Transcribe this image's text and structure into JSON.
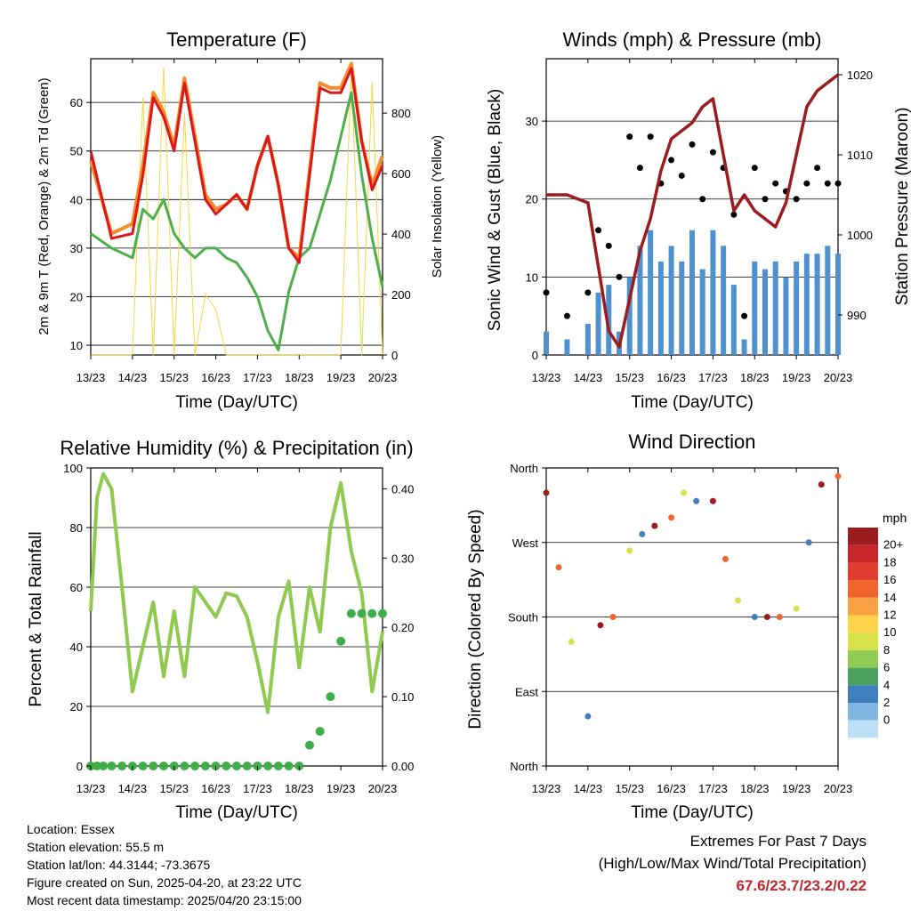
{
  "figure": {
    "ticks_day": [
      "13/23",
      "14/23",
      "15/23",
      "16/23",
      "17/23",
      "18/23",
      "19/23",
      "20/23"
    ],
    "xlabel": "Time (Day/UTC)"
  },
  "panels": {
    "temperature": {
      "title": "Temperature (F)",
      "ylabel_left": "2m & 9m T (Red, Orange) & 2m Td (Green)",
      "ylabel_right": "Solar Insolation (Yellow)",
      "yticks_left": [
        10,
        20,
        30,
        40,
        50,
        60
      ],
      "yticks_right": [
        0,
        200,
        400,
        600,
        800
      ]
    },
    "winds": {
      "title": "Winds (mph) & Pressure (mb)",
      "ylabel_left": "Sonic Wind & Gust (Blue, Black)",
      "ylabel_right": "Station Pressure (Maroon)",
      "yticks_left": [
        0,
        10,
        20,
        30
      ],
      "yticks_right": [
        990,
        1000,
        1010,
        1020
      ]
    },
    "humidity": {
      "title": "Relative Humidity (%) & Precipitation (in)",
      "ylabel_left": "Percent & Total Rainfall",
      "yticks_left": [
        0,
        20,
        40,
        60,
        80,
        100
      ],
      "yticks_right": [
        "0.00",
        "0.10",
        "0.20",
        "0.30",
        "0.40"
      ]
    },
    "direction": {
      "title": "Wind Direction",
      "ylabel_left": "Direction (Colored By Speed)",
      "yticks_left": [
        "North",
        "East",
        "South",
        "West",
        "North"
      ],
      "legend_title": "mph",
      "legend_labels": [
        "20+",
        "18",
        "16",
        "14",
        "12",
        "10",
        "8",
        "6",
        "4",
        "2",
        "0"
      ],
      "legend_colors": [
        "#9b1c1f",
        "#c8262a",
        "#e03b2c",
        "#f1652c",
        "#f9a243",
        "#fcd24a",
        "#d8e04a",
        "#8fcb55",
        "#4aa261",
        "#3f7fbf",
        "#7fb6e2",
        "#bde0f7"
      ]
    }
  },
  "chart_data": [
    {
      "type": "line",
      "title": "Temperature (F)",
      "xlabel": "Time (Day/UTC)",
      "ylabel": "2m & 9m T (Red, Orange) & 2m Td (Green)",
      "y2label": "Solar Insolation (Yellow)",
      "x": [
        13.0,
        13.5,
        14.0,
        14.25,
        14.5,
        14.75,
        15.0,
        15.25,
        15.5,
        15.75,
        16.0,
        16.25,
        16.5,
        16.75,
        17.0,
        17.25,
        17.5,
        17.75,
        18.0,
        18.25,
        18.5,
        18.75,
        19.0,
        19.25,
        19.5,
        19.75,
        20.0
      ],
      "series": [
        {
          "values": [
            50,
            32,
            33,
            45,
            61,
            57,
            50,
            64,
            52,
            40,
            37,
            39,
            41,
            38,
            47,
            53,
            43,
            30,
            27,
            45,
            63,
            62,
            62,
            67,
            52,
            42,
            47
          ],
          "color": "#d7191c"
        },
        {
          "values": [
            48,
            33,
            35,
            47,
            62,
            58,
            51,
            65,
            53,
            41,
            38,
            39,
            41,
            38,
            47,
            53,
            43,
            30,
            28,
            46,
            64,
            63,
            63,
            68,
            52,
            43,
            49
          ],
          "color": "#f58a2a"
        },
        {
          "values": [
            33,
            30,
            28,
            38,
            36,
            40,
            33,
            30,
            28,
            30,
            30,
            28,
            27,
            24,
            20,
            13,
            9,
            21,
            28,
            30,
            37,
            44,
            53,
            62,
            45,
            32,
            22
          ],
          "color": "#4daf4a"
        },
        {
          "values": [
            0,
            0,
            0,
            850,
            0,
            950,
            0,
            800,
            0,
            200,
            150,
            0,
            0,
            0,
            0,
            0,
            0,
            0,
            0,
            0,
            0,
            0,
            0,
            950,
            0,
            900,
            0
          ],
          "color": "#f5d642"
        }
      ],
      "ylim": [
        8,
        69
      ],
      "y2lim": [
        0,
        980
      ]
    },
    {
      "type": "scatter",
      "title": "Winds (mph) & Pressure (mb)",
      "xlabel": "Time (Day/UTC)",
      "ylabel": "Sonic Wind & Gust (Blue, Black)",
      "y2label": "Station Pressure (Maroon)",
      "x": [
        13.0,
        13.5,
        14.0,
        14.25,
        14.5,
        14.75,
        15.0,
        15.25,
        15.5,
        15.75,
        16.0,
        16.25,
        16.5,
        16.75,
        17.0,
        17.25,
        17.5,
        17.75,
        18.0,
        18.25,
        18.5,
        18.75,
        19.0,
        19.25,
        19.5,
        19.75,
        20.0
      ],
      "series": [
        {
          "values": [
            3,
            2,
            4,
            8,
            9,
            3,
            10,
            14,
            16,
            12,
            14,
            12,
            16,
            11,
            16,
            14,
            9,
            2,
            12,
            11,
            12,
            10,
            12,
            13,
            13,
            14,
            13
          ],
          "color": "#4f91cf"
        },
        {
          "values": [
            8,
            5,
            8,
            16,
            14,
            10,
            28,
            24,
            28,
            22,
            25,
            23,
            27,
            20,
            26,
            24,
            18,
            5,
            24,
            20,
            22,
            21,
            20,
            22,
            24,
            22,
            22
          ],
          "color": "#000000"
        },
        {
          "values": [
            1005,
            1005,
            1004,
            996,
            988,
            986,
            992,
            998,
            1002,
            1008,
            1012,
            1013,
            1014,
            1016,
            1017,
            1010,
            1003,
            1005,
            1003,
            1002,
            1001,
            1004,
            1010,
            1016,
            1018,
            1019,
            1020
          ],
          "color": "#9b1c1f"
        }
      ],
      "ylim": [
        0,
        38
      ],
      "y2lim": [
        985,
        1022
      ]
    },
    {
      "type": "line",
      "title": "Relative Humidity (%) & Precipitation (in)",
      "xlabel": "Time (Day/UTC)",
      "ylabel": "Percent & Total Rainfall",
      "x": [
        13.0,
        13.15,
        13.3,
        13.5,
        13.75,
        14.0,
        14.25,
        14.5,
        14.75,
        15.0,
        15.25,
        15.5,
        15.75,
        16.0,
        16.25,
        16.5,
        16.75,
        17.0,
        17.25,
        17.5,
        17.75,
        18.0,
        18.25,
        18.5,
        18.75,
        19.0,
        19.25,
        19.5,
        19.75,
        20.0
      ],
      "series": [
        {
          "values": [
            52,
            90,
            98,
            93,
            60,
            25,
            40,
            55,
            30,
            52,
            30,
            60,
            55,
            50,
            58,
            57,
            50,
            35,
            18,
            50,
            62,
            33,
            60,
            45,
            80,
            95,
            72,
            58,
            25,
            45
          ],
          "color": "#8fc94f"
        },
        {
          "values": [
            0,
            0,
            0,
            0,
            0,
            0,
            0,
            0,
            0,
            0,
            0,
            0,
            0,
            0,
            0,
            0,
            0,
            0,
            0,
            0,
            0,
            0,
            0.03,
            0.05,
            0.1,
            0.18,
            0.22,
            0.22,
            0.22,
            0.22
          ],
          "color": "#3fae49"
        }
      ],
      "ylim": [
        0,
        100
      ],
      "y2lim": [
        0,
        0.43
      ]
    },
    {
      "type": "scatter",
      "title": "Wind Direction",
      "xlabel": "Time (Day/UTC)",
      "ylabel": "Direction (Colored By Speed)",
      "x": [
        13.0,
        13.3,
        13.6,
        14.0,
        14.3,
        14.6,
        15.0,
        15.3,
        15.6,
        16.0,
        16.3,
        16.6,
        17.0,
        17.3,
        17.6,
        18.0,
        18.3,
        18.6,
        19.0,
        19.3,
        19.6,
        20.0
      ],
      "values": [
        330,
        240,
        150,
        60,
        170,
        180,
        260,
        280,
        290,
        300,
        330,
        320,
        320,
        250,
        200,
        180,
        180,
        180,
        190,
        270,
        340,
        350
      ],
      "ylim": [
        0,
        360
      ]
    }
  ],
  "info": {
    "location": "Location: Essex",
    "elevation": "Station elevation: 55.5 m",
    "latlon": "Station lat/lon: 44.3144; -73.3675",
    "created": "Figure created on Sun, 2025-04-20, at 23:22 UTC",
    "recent": "Most recent data timestamp: 2025/04/20 23:15:00"
  },
  "extremes": {
    "title": "Extremes For Past 7 Days",
    "subtitle": "(High/Low/Max Wind/Total Precipitation)",
    "values": "67.6/23.7/23.2/0.22"
  }
}
